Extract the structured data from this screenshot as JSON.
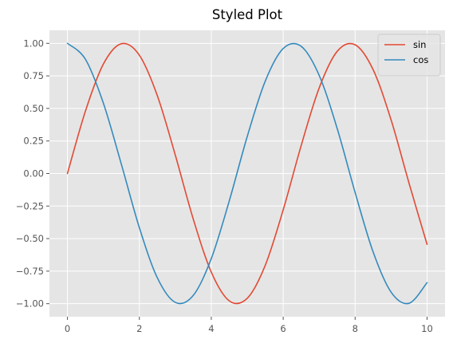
{
  "chart_data": {
    "type": "line",
    "title": "Styled Plot",
    "xlabel": "",
    "ylabel": "",
    "xlim": [
      -0.5,
      10.5
    ],
    "ylim": [
      -1.1,
      1.1
    ],
    "grid": true,
    "legend_position": "top-right",
    "x_ticks": [
      0,
      2,
      4,
      6,
      8,
      10
    ],
    "x_tick_labels": [
      "0",
      "2",
      "4",
      "6",
      "8",
      "10"
    ],
    "y_ticks": [
      1.0,
      0.75,
      0.5,
      0.25,
      0.0,
      -0.25,
      -0.5,
      -0.75,
      -1.0
    ],
    "y_tick_labels": [
      "1.00",
      "0.75",
      "0.50",
      "0.25",
      "0.00",
      "−0.25",
      "−0.50",
      "−0.75",
      "−1.00"
    ],
    "x": [
      0.0,
      0.5,
      1.0,
      1.5,
      2.0,
      2.5,
      3.0,
      3.5,
      4.0,
      4.5,
      5.0,
      5.5,
      6.0,
      6.5,
      7.0,
      7.5,
      8.0,
      8.5,
      9.0,
      9.5,
      10.0
    ],
    "series": [
      {
        "name": "sin",
        "color": "#E24A33",
        "values": [
          0.0,
          0.479,
          0.841,
          0.997,
          0.909,
          0.598,
          0.141,
          -0.351,
          -0.757,
          -0.978,
          -0.959,
          -0.706,
          -0.279,
          0.215,
          0.657,
          0.938,
          0.989,
          0.798,
          0.412,
          -0.075,
          -0.544
        ]
      },
      {
        "name": "cos",
        "color": "#348ABD",
        "values": [
          1.0,
          0.878,
          0.54,
          0.071,
          -0.416,
          -0.801,
          -0.99,
          -0.936,
          -0.654,
          -0.211,
          0.284,
          0.709,
          0.96,
          0.977,
          0.754,
          0.347,
          -0.146,
          -0.602,
          -0.911,
          -0.997,
          -0.839
        ]
      }
    ]
  },
  "colors": {
    "plot_background": "#E5E5E5",
    "grid": "#FFFFFF",
    "tick_mark": "#555555",
    "figure_background": "#FFFFFF"
  }
}
